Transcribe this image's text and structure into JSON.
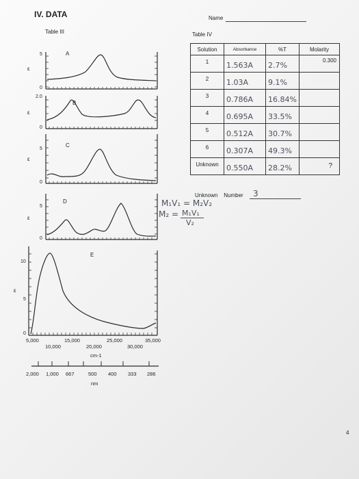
{
  "section_title": "IV. DATA",
  "name_label": "Name",
  "table3_title": "Table III",
  "table4_title": "Table IV",
  "table4": {
    "headers": [
      "Solution",
      "Absorbance",
      "%T",
      "Molarity"
    ],
    "rows": [
      {
        "solution": "1",
        "absorbance": "1.563A",
        "pct_t": "2.7%",
        "molarity": "0.300"
      },
      {
        "solution": "2",
        "absorbance": "1.03A",
        "pct_t": "9.1%",
        "molarity": ""
      },
      {
        "solution": "3",
        "absorbance": "0.786A",
        "pct_t": "16.84%",
        "molarity": ""
      },
      {
        "solution": "4",
        "absorbance": "0.695A",
        "pct_t": "33.5%",
        "molarity": ""
      },
      {
        "solution": "5",
        "absorbance": "0.512A",
        "pct_t": "30.7%",
        "molarity": ""
      },
      {
        "solution": "6",
        "absorbance": "0.307A",
        "pct_t": "49.3%",
        "molarity": ""
      },
      {
        "solution": "Unknown",
        "absorbance": "0.550A",
        "pct_t": "28.2%",
        "molarity": "?"
      }
    ]
  },
  "unknown_number_label": "Unknown    Number",
  "unknown_number_value": "3",
  "equation_line1": "M₁V₁ = M₂V₂",
  "equation_line2_lhs": "M₂ =",
  "equation_numerator": "M₁V₁",
  "equation_denominator": "V₂",
  "spectra": {
    "panels": [
      {
        "label": "A",
        "y_ticks": [
          "5",
          "0"
        ]
      },
      {
        "label": "B",
        "y_ticks": [
          "2.0",
          "0"
        ]
      },
      {
        "label": "C",
        "y_ticks": [
          "5",
          "0"
        ]
      },
      {
        "label": "D",
        "y_ticks": [
          "5",
          "0"
        ]
      },
      {
        "label": "E",
        "y_ticks": [
          "10",
          "5",
          "0"
        ]
      }
    ],
    "epsilon_symbol": "ε",
    "wavenumber_ticks_row1": [
      "5,000",
      "15,000",
      "25,000",
      "35,000"
    ],
    "wavenumber_ticks_row2": [
      "10,000",
      "20,000",
      "30,000"
    ],
    "wavenumber_unit": "cm-1",
    "wavelength_ticks": [
      "2,000",
      "1,000",
      "667",
      "500",
      "400",
      "333",
      "286"
    ],
    "wavelength_unit": "nm"
  },
  "page_number": "4"
}
